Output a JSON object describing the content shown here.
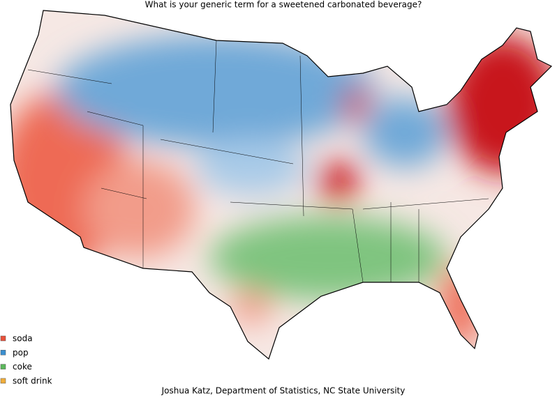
{
  "title": "What is your generic term for a sweetened carbonated beverage?",
  "legend": [
    {
      "label": "soda",
      "color": "#e8503a"
    },
    {
      "label": "pop",
      "color": "#3a8fd0"
    },
    {
      "label": "coke",
      "color": "#5cb85c"
    },
    {
      "label": "soft drink",
      "color": "#f0ad3a"
    }
  ],
  "credit": "Joshua Katz, Department of Statistics, NC State University"
}
